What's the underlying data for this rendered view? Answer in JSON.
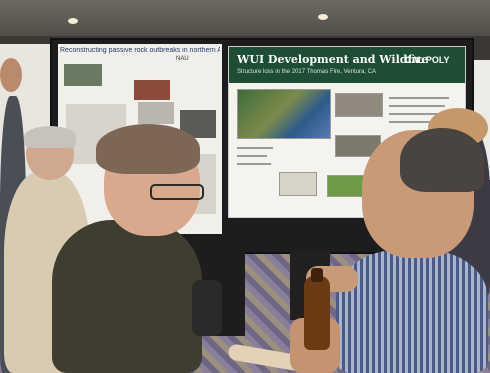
{
  "posters": {
    "left_title": "Reconstructing passive rock outbreaks in northern Arizona",
    "left_logo": "NAU",
    "main_title": "WUI Development and Wildfire",
    "main_subtitle": "Structure loss in the 2017 Thomas Fire, Ventura, CA",
    "main_logo": "CAL POLY"
  }
}
